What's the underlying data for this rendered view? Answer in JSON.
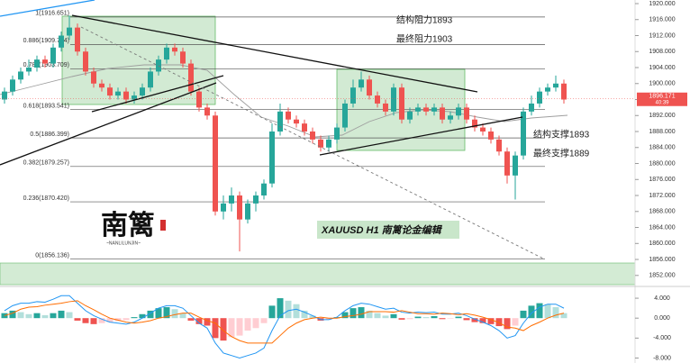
{
  "chart_data": {
    "type": "candlestick",
    "title": "XAUUSD  H1  南篱论金编辑",
    "logo": "南篱",
    "logo_sub": "~NANLILUNJIN~",
    "annotations": [
      "结构阻力1893",
      "最终阻力1903",
      "结构支撑1893",
      "最终支撑1889"
    ],
    "current_price": 1896.171,
    "countdown": "40:39",
    "ylim": [
      1849.7,
      1920.9
    ],
    "yticks": [
      {
        "value": 1920,
        "label": "1920.000"
      },
      {
        "value": 1916,
        "label": "1916.000"
      },
      {
        "value": 1912,
        "label": "1912.000"
      },
      {
        "value": 1908,
        "label": "1908.000"
      },
      {
        "value": 1904,
        "label": "1904.000"
      },
      {
        "value": 1900,
        "label": "1900.000"
      },
      {
        "value": 1896,
        "label": "1896.000"
      },
      {
        "value": 1892,
        "label": "1892.000"
      },
      {
        "value": 1888,
        "label": "1888.000"
      },
      {
        "value": 1884,
        "label": "1884.000"
      },
      {
        "value": 1880,
        "label": "1880.000"
      },
      {
        "value": 1876,
        "label": "1876.000"
      },
      {
        "value": 1872,
        "label": "1872.000"
      },
      {
        "value": 1868,
        "label": "1868.000"
      },
      {
        "value": 1864,
        "label": "1864.000"
      },
      {
        "value": 1860,
        "label": "1860.000"
      },
      {
        "value": 1856,
        "label": "1856.000"
      },
      {
        "value": 1852,
        "label": "1852.000"
      }
    ],
    "fib_levels": [
      {
        "value": 1916.651,
        "label": "1(1916.651)"
      },
      {
        "value": 1909.774,
        "label": "0.886(1909.774)"
      },
      {
        "value": 1903.709,
        "label": "0.786(1903.709)"
      },
      {
        "value": 1893.541,
        "label": "0.618(1893.541)"
      },
      {
        "value": 1886.399,
        "label": "0.5(1886.399)"
      },
      {
        "value": 1879.257,
        "label": "0.382(1879.257)"
      },
      {
        "value": 1870.42,
        "label": "0.236(1870.420)"
      },
      {
        "value": 1856.136,
        "label": "0(1856.136)"
      }
    ],
    "up_color": "#26a69a",
    "down_color": "#ef5350",
    "open": [
      1896,
      1898,
      1901,
      1903,
      1904,
      1906,
      1905,
      1909,
      1912,
      1914,
      1908,
      1903,
      1900,
      1899,
      1897,
      1898,
      1896,
      1897,
      1899,
      1903,
      1906,
      1909,
      1908,
      1905,
      1898,
      1894,
      1892,
      1868,
      1870,
      1872,
      1866,
      1870,
      1872,
      1875,
      1888,
      1893,
      1891,
      1890,
      1888,
      1886,
      1884,
      1886,
      1889,
      1895,
      1899,
      1901,
      1897,
      1895,
      1893,
      1899,
      1891,
      1893,
      1894,
      1893,
      1894,
      1891,
      1892,
      1894,
      1891,
      1889,
      1888,
      1886,
      1883,
      1877,
      1882,
      1893,
      1895,
      1898,
      1899,
      1900
    ],
    "high": [
      1899,
      1902,
      1904,
      1906,
      1907,
      1907,
      1910,
      1913,
      1917,
      1915,
      1909,
      1904,
      1901,
      1900,
      1899,
      1899,
      1898,
      1900,
      1904,
      1907,
      1910,
      1910,
      1909,
      1906,
      1899,
      1895,
      1893,
      1872,
      1874,
      1873,
      1871,
      1873,
      1876,
      1890,
      1895,
      1894,
      1892,
      1891,
      1889,
      1887,
      1887,
      1890,
      1896,
      1901,
      1903,
      1902,
      1898,
      1896,
      1900,
      1900,
      1894,
      1895,
      1895,
      1895,
      1895,
      1893,
      1895,
      1895,
      1892,
      1890,
      1889,
      1887,
      1884,
      1883,
      1894,
      1897,
      1899,
      1900,
      1902,
      1901
    ],
    "low": [
      1895,
      1897,
      1900,
      1902,
      1903,
      1904,
      1904,
      1908,
      1911,
      1907,
      1902,
      1899,
      1898,
      1896,
      1896,
      1895,
      1895,
      1896,
      1898,
      1902,
      1905,
      1907,
      1904,
      1897,
      1893,
      1891,
      1867,
      1866,
      1868,
      1858,
      1865,
      1868,
      1871,
      1874,
      1887,
      1890,
      1889,
      1887,
      1885,
      1883,
      1883,
      1885,
      1888,
      1894,
      1898,
      1896,
      1894,
      1892,
      1892,
      1890,
      1890,
      1892,
      1892,
      1892,
      1890,
      1890,
      1891,
      1890,
      1888,
      1887,
      1885,
      1882,
      1875,
      1871,
      1881,
      1892,
      1894,
      1897,
      1898,
      1895
    ],
    "close": [
      1898,
      1901,
      1903,
      1904,
      1906,
      1905,
      1909,
      1912,
      1914,
      1908,
      1903,
      1900,
      1899,
      1897,
      1898,
      1896,
      1897,
      1899,
      1903,
      1906,
      1909,
      1908,
      1905,
      1898,
      1894,
      1892,
      1868,
      1870,
      1872,
      1866,
      1870,
      1872,
      1875,
      1888,
      1893,
      1891,
      1890,
      1888,
      1886,
      1884,
      1886,
      1889,
      1895,
      1899,
      1901,
      1897,
      1895,
      1893,
      1899,
      1891,
      1893,
      1894,
      1893,
      1894,
      1891,
      1892,
      1894,
      1891,
      1889,
      1888,
      1886,
      1883,
      1877,
      1882,
      1893,
      1895,
      1898,
      1899,
      1900,
      1896
    ],
    "macd": {
      "ylim": [
        -9,
        6
      ],
      "yticks": [
        {
          "value": 4,
          "label": "4.000"
        },
        {
          "value": 0,
          "label": "0.000"
        },
        {
          "value": -4,
          "label": "-4.000"
        },
        {
          "value": -8,
          "label": "-8.000"
        }
      ],
      "histogram": [
        1,
        1.5,
        1.2,
        0.8,
        1,
        0.6,
        1,
        1.5,
        1.2,
        -0.5,
        -1,
        -1.2,
        -1,
        -0.8,
        -0.6,
        -0.4,
        0.2,
        0.8,
        1.5,
        2,
        2.2,
        1.8,
        1,
        -0.5,
        -1.2,
        -1.5,
        -4,
        -4.5,
        -3.8,
        -3.5,
        -2.5,
        -2,
        -1,
        2.5,
        4,
        3.5,
        2.8,
        1.5,
        0.5,
        -0.5,
        -0.3,
        0.2,
        1.2,
        2,
        2.2,
        1.5,
        1,
        0.5,
        0.8,
        -0.3,
        -0.2,
        0.3,
        0.2,
        0.4,
        -0.2,
        -0.1,
        0.3,
        -0.4,
        -0.8,
        -1,
        -1.2,
        -1.6,
        -2.2,
        -1.5,
        1.5,
        2.5,
        3,
        2.8,
        2.2,
        1
      ],
      "series": [
        {
          "color": "#2196f3",
          "values": [
            1.5,
            2.5,
            3,
            3,
            3.3,
            3.2,
            3.8,
            4.5,
            4.5,
            3,
            1.5,
            0.5,
            -0.2,
            -0.8,
            -1,
            -1.2,
            -0.8,
            0,
            1,
            2,
            2.5,
            2.5,
            2,
            0.5,
            -1,
            -2,
            -5,
            -7,
            -7.5,
            -8,
            -7.5,
            -7,
            -6,
            -2.5,
            0.5,
            1.5,
            1.8,
            1.2,
            0.5,
            -0.3,
            -0.3,
            0.2,
            1.5,
            2.5,
            3,
            2.8,
            2.3,
            1.8,
            2,
            1.2,
            1,
            1.2,
            1.1,
            1.2,
            0.8,
            0.8,
            1,
            0.5,
            -0.2,
            -0.8,
            -1.5,
            -2.5,
            -4,
            -3.5,
            -1,
            1,
            2.2,
            2.8,
            2.8,
            2
          ]
        },
        {
          "color": "#ff6d00",
          "values": [
            0.5,
            1,
            1.8,
            2.2,
            2.3,
            2.6,
            2.8,
            3,
            3.3,
            3.5,
            2.5,
            1.7,
            0.8,
            0,
            -0.4,
            -0.8,
            -1,
            -0.8,
            -0.5,
            0,
            0.3,
            0.7,
            1,
            1,
            0.2,
            -0.5,
            -1,
            -2.5,
            -3.7,
            -4.5,
            -5,
            -5,
            -5,
            -5,
            -3.5,
            -2,
            -1,
            -0.3,
            0,
            0.2,
            0,
            0,
            0.3,
            0.5,
            0.8,
            1.3,
            1.3,
            1.3,
            1.2,
            1.5,
            1.2,
            0.9,
            0.9,
            0.8,
            1,
            0.9,
            0.7,
            0.9,
            0.6,
            0.2,
            -0.3,
            -0.9,
            -1.8,
            -2,
            -2.5,
            -1.5,
            -0.8,
            0,
            0.6,
            1
          ]
        }
      ]
    }
  }
}
